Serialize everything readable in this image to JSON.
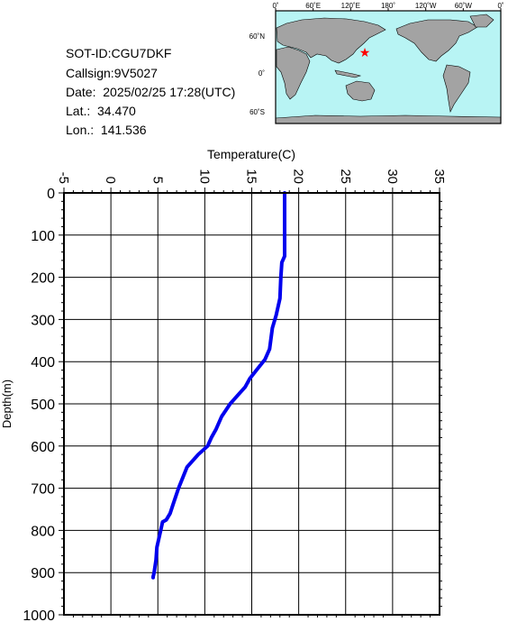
{
  "station": {
    "sot_id": "SOT-ID:CGU7DKF",
    "callsign": "Callsign:9V5027",
    "date": "Date:  2025/02/25 17:28(UTC)",
    "lat": "Lat.:  34.470",
    "lon": "Lon.:  141.536"
  },
  "map": {
    "top_labels": [
      "0˚",
      "60˚E",
      "120˚E",
      "180˚",
      "120˚W",
      "60˚W",
      "0˚"
    ],
    "lat_labels": [
      "60˚N",
      "0˚",
      "60˚S"
    ],
    "ocean_color": "#b8f4f4",
    "land_color": "#a3a3a3",
    "marker_color": "#ff0000",
    "marker_icon": "star-icon"
  },
  "chart_data": {
    "type": "line",
    "title": "",
    "xlabel": "Temperature(C)",
    "ylabel": "Depth(m)",
    "x_axis_position": "top",
    "y_axis_inverted": true,
    "xlim": [
      -5,
      35
    ],
    "ylim": [
      0,
      1000
    ],
    "x_ticks": [
      "-5",
      "0",
      "5",
      "10",
      "15",
      "20",
      "25",
      "30",
      "35"
    ],
    "y_ticks": [
      "0",
      "100",
      "200",
      "300",
      "400",
      "500",
      "600",
      "700",
      "800",
      "900",
      "1000"
    ],
    "grid": true,
    "line_color": "#0000ee",
    "series": [
      {
        "x": [
          18.5,
          18.5,
          18.5,
          18.5,
          18.2,
          18.1,
          18.0,
          17.6,
          17.2,
          16.9,
          16.4,
          15.5,
          14.8,
          14.3,
          13.5,
          12.7,
          11.8,
          11.2,
          10.7,
          10.3,
          9.3,
          8.1,
          7.2,
          6.6,
          6.3,
          5.9,
          5.5,
          5.3,
          4.9,
          4.8,
          4.6,
          4.5,
          4.5
        ],
        "y": [
          0,
          50,
          100,
          150,
          165,
          200,
          250,
          290,
          320,
          370,
          395,
          420,
          440,
          460,
          480,
          500,
          530,
          560,
          580,
          600,
          620,
          650,
          700,
          740,
          760,
          775,
          780,
          800,
          840,
          870,
          900,
          910,
          912
        ]
      }
    ]
  }
}
